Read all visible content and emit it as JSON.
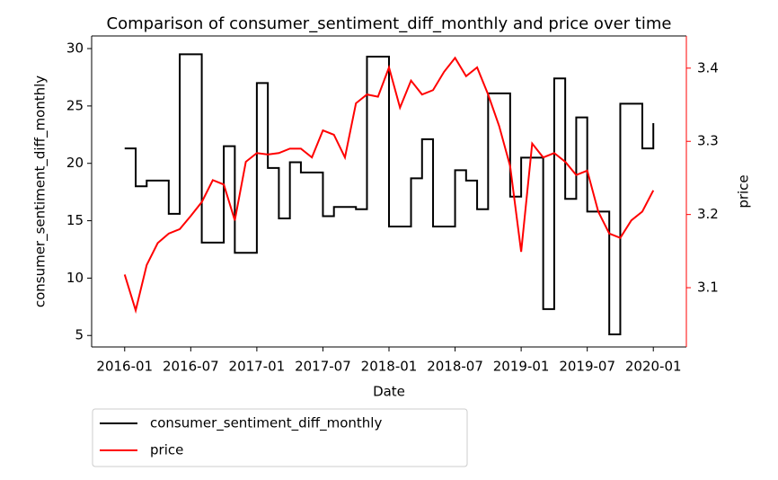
{
  "chart_data": {
    "type": "line",
    "title": "Comparison of consumer_sentiment_diff_monthly and price over time",
    "xlabel": "Date",
    "ylabel": "consumer_sentiment_diff_monthly",
    "y2label": "price",
    "x": [
      "2016-01",
      "2016-02",
      "2016-03",
      "2016-04",
      "2016-05",
      "2016-06",
      "2016-07",
      "2016-08",
      "2016-09",
      "2016-10",
      "2016-11",
      "2016-12",
      "2017-01",
      "2017-02",
      "2017-03",
      "2017-04",
      "2017-05",
      "2017-06",
      "2017-07",
      "2017-08",
      "2017-09",
      "2017-10",
      "2017-11",
      "2017-12",
      "2018-01",
      "2018-02",
      "2018-03",
      "2018-04",
      "2018-05",
      "2018-06",
      "2018-07",
      "2018-08",
      "2018-09",
      "2018-10",
      "2018-11",
      "2018-12",
      "2019-01",
      "2019-02",
      "2019-03",
      "2019-04",
      "2019-05",
      "2019-06",
      "2019-07",
      "2019-08",
      "2019-09",
      "2019-10",
      "2019-11",
      "2019-12",
      "2020-01"
    ],
    "series": [
      {
        "name": "consumer_sentiment_diff_monthly",
        "color": "#000000",
        "drawstyle": "steps-post",
        "values": [
          21.3,
          18.0,
          18.5,
          18.5,
          15.6,
          29.5,
          29.5,
          13.1,
          13.1,
          21.5,
          12.2,
          12.2,
          27.0,
          19.6,
          15.2,
          20.1,
          19.2,
          19.2,
          15.4,
          16.2,
          16.2,
          16.0,
          29.3,
          29.3,
          14.5,
          14.5,
          18.7,
          22.1,
          14.5,
          14.5,
          19.4,
          18.5,
          16.0,
          26.1,
          26.1,
          17.1,
          20.5,
          20.5,
          7.3,
          27.4,
          16.9,
          24.0,
          15.8,
          15.8,
          5.1,
          25.2,
          25.2,
          21.3,
          23.5
        ]
      },
      {
        "name": "price",
        "color": "#ff0000",
        "axis": "y2",
        "values": [
          3.118,
          3.069,
          3.131,
          3.161,
          3.174,
          3.18,
          3.198,
          3.217,
          3.247,
          3.241,
          3.192,
          3.272,
          3.284,
          3.282,
          3.284,
          3.29,
          3.29,
          3.278,
          3.315,
          3.309,
          3.278,
          3.352,
          3.364,
          3.361,
          3.401,
          3.346,
          3.383,
          3.364,
          3.37,
          3.395,
          3.414,
          3.389,
          3.401,
          3.364,
          3.321,
          3.266,
          3.149,
          3.297,
          3.278,
          3.284,
          3.272,
          3.254,
          3.26,
          3.204,
          3.174,
          3.168,
          3.192,
          3.204,
          3.233
        ]
      }
    ],
    "xlim": [
      "2015-10",
      "2020-04"
    ],
    "xticks": [
      "2016-01",
      "2016-07",
      "2017-01",
      "2017-07",
      "2018-01",
      "2018-07",
      "2019-01",
      "2019-07",
      "2020-01"
    ],
    "ylim": [
      4.0,
      31.1
    ],
    "yticks": [
      5,
      10,
      15,
      20,
      25,
      30
    ],
    "y2lim": [
      3.019,
      3.444
    ],
    "y2ticks": [
      3.1,
      3.2,
      3.3,
      3.4
    ],
    "y2color": "#ff0000",
    "grid": false,
    "legend": "below"
  }
}
